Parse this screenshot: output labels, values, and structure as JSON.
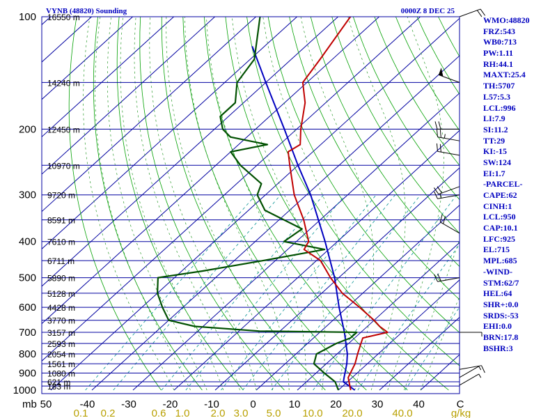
{
  "title": "VYNB (48820) Sounding",
  "time": "0000Z  8 DEC 25",
  "colors": {
    "frame": "#0000a0",
    "isobar": "#0000a0",
    "isotherm": "#0000a0",
    "dry_adiabat": "#00a000",
    "moist_adiabat": "#2a9a2a",
    "mixing_ratio": "#009090",
    "temperature": "#c00000",
    "dewpoint": "#005000",
    "parcel": "#0000c0",
    "axis_text": "#000000",
    "mixing_text": "#b8a000",
    "sidebar_text": "#0000c0"
  },
  "chart_data": {
    "type": "skew-t",
    "p_axis": {
      "label": "mb",
      "top": 100,
      "bottom": 1000,
      "ticks": [
        100,
        200,
        300,
        400,
        500,
        600,
        700,
        800,
        900,
        1000
      ]
    },
    "t_axis": {
      "ticks": [
        "50",
        "-40",
        "-30",
        "-20",
        "-10",
        "0",
        "10",
        "20",
        "30",
        "40",
        "C"
      ]
    },
    "mixing_ratio_labels": [
      "0.1",
      "0.2",
      "0.6",
      "1.0",
      "2.0",
      "3.0",
      "5.0",
      "10.0",
      "20.0",
      "40.0",
      "g/kg"
    ],
    "heights": [
      {
        "p": 100,
        "label": "16550 m"
      },
      {
        "p": 150,
        "label": "14240 m"
      },
      {
        "p": 200,
        "label": "12450 m"
      },
      {
        "p": 250,
        "label": "10970 m"
      },
      {
        "p": 300,
        "label": "9720 m"
      },
      {
        "p": 350,
        "label": "8591 m"
      },
      {
        "p": 400,
        "label": "7610 m"
      },
      {
        "p": 450,
        "label": "6711 m"
      },
      {
        "p": 500,
        "label": "5890 m"
      },
      {
        "p": 550,
        "label": "5128 m"
      },
      {
        "p": 600,
        "label": "4428 m"
      },
      {
        "p": 650,
        "label": "3770 m"
      },
      {
        "p": 700,
        "label": "3157 m"
      },
      {
        "p": 750,
        "label": "2593 m"
      },
      {
        "p": 800,
        "label": "2054 m"
      },
      {
        "p": 850,
        "label": "1561 m"
      },
      {
        "p": 900,
        "label": "1080 m"
      },
      {
        "p": 950,
        "label": "621 m"
      },
      {
        "p": 975,
        "label": "183 m"
      }
    ],
    "temperature": [
      {
        "p": 1000,
        "t": 23
      },
      {
        "p": 925,
        "t": 19
      },
      {
        "p": 850,
        "t": 17
      },
      {
        "p": 800,
        "t": 15
      },
      {
        "p": 750,
        "t": 13
      },
      {
        "p": 725,
        "t": 12
      },
      {
        "p": 700,
        "t": 16.5
      },
      {
        "p": 675,
        "t": 13
      },
      {
        "p": 650,
        "t": 10
      },
      {
        "p": 600,
        "t": 3
      },
      {
        "p": 550,
        "t": -5
      },
      {
        "p": 500,
        "t": -12
      },
      {
        "p": 450,
        "t": -19
      },
      {
        "p": 420,
        "t": -26
      },
      {
        "p": 400,
        "t": -27
      },
      {
        "p": 350,
        "t": -34
      },
      {
        "p": 300,
        "t": -43
      },
      {
        "p": 250,
        "t": -52
      },
      {
        "p": 230,
        "t": -56
      },
      {
        "p": 220,
        "t": -55
      },
      {
        "p": 200,
        "t": -59
      },
      {
        "p": 170,
        "t": -65
      },
      {
        "p": 150,
        "t": -71
      },
      {
        "p": 130,
        "t": -73
      },
      {
        "p": 100,
        "t": -77
      }
    ],
    "dewpoint": [
      {
        "p": 1000,
        "t": 20
      },
      {
        "p": 950,
        "t": 17
      },
      {
        "p": 900,
        "t": 12
      },
      {
        "p": 850,
        "t": 7
      },
      {
        "p": 800,
        "t": 5
      },
      {
        "p": 750,
        "t": 7
      },
      {
        "p": 725,
        "t": 9
      },
      {
        "p": 700,
        "t": 9
      },
      {
        "p": 695,
        "t": -15
      },
      {
        "p": 675,
        "t": -32
      },
      {
        "p": 650,
        "t": -40
      },
      {
        "p": 600,
        "t": -45
      },
      {
        "p": 550,
        "t": -50
      },
      {
        "p": 500,
        "t": -54
      },
      {
        "p": 480,
        "t": -45
      },
      {
        "p": 450,
        "t": -33
      },
      {
        "p": 420,
        "t": -21
      },
      {
        "p": 400,
        "t": -33
      },
      {
        "p": 370,
        "t": -32
      },
      {
        "p": 330,
        "t": -46
      },
      {
        "p": 300,
        "t": -52
      },
      {
        "p": 280,
        "t": -54
      },
      {
        "p": 250,
        "t": -64
      },
      {
        "p": 230,
        "t": -70
      },
      {
        "p": 220,
        "t": -63
      },
      {
        "p": 210,
        "t": -74
      },
      {
        "p": 200,
        "t": -78
      },
      {
        "p": 185,
        "t": -82
      },
      {
        "p": 170,
        "t": -82
      },
      {
        "p": 150,
        "t": -87
      },
      {
        "p": 130,
        "t": -89
      },
      {
        "p": 100,
        "t": -99
      }
    ],
    "parcel": [
      {
        "p": 1000,
        "t": 24
      },
      {
        "p": 950,
        "t": 19
      },
      {
        "p": 925,
        "t": 18
      },
      {
        "p": 850,
        "t": 15
      },
      {
        "p": 800,
        "t": 12.5
      },
      {
        "p": 700,
        "t": 6
      },
      {
        "p": 600,
        "t": -2
      },
      {
        "p": 500,
        "t": -11
      },
      {
        "p": 400,
        "t": -23
      },
      {
        "p": 300,
        "t": -39
      },
      {
        "p": 250,
        "t": -50
      },
      {
        "p": 200,
        "t": -63
      },
      {
        "p": 150,
        "t": -80
      },
      {
        "p": 120,
        "t": -93
      }
    ],
    "wind_barbs": [
      {
        "p": 100,
        "dir": 70,
        "spd": 20
      },
      {
        "p": 150,
        "dir": 290,
        "spd": 50
      },
      {
        "p": 200,
        "dir": 270,
        "spd": 20
      },
      {
        "p": 215,
        "dir": 280,
        "spd": 25
      },
      {
        "p": 235,
        "dir": 280,
        "spd": 20
      },
      {
        "p": 285,
        "dir": 250,
        "spd": 20
      },
      {
        "p": 300,
        "dir": 260,
        "spd": 15
      },
      {
        "p": 380,
        "dir": 300,
        "spd": 20
      },
      {
        "p": 500,
        "dir": 260,
        "spd": 20
      },
      {
        "p": 700,
        "dir": 90,
        "spd": 5
      },
      {
        "p": 880,
        "dir": 80,
        "spd": 10
      },
      {
        "p": 925,
        "dir": 60,
        "spd": 5
      },
      {
        "p": 970,
        "dir": 60,
        "spd": 5
      }
    ],
    "grid": true
  },
  "sidebar": [
    "WMO:48820",
    "FRZ:543",
    "WB0:713",
    "PW:1.11",
    "RH:44.1",
    "MAXT:25.4",
    "TH:5707",
    "L57:5.3",
    "LCL:996",
    "LI:7.9",
    "SI:11.2",
    "TT:29",
    "KI:-15",
    "SW:124",
    "EI:1.7",
    "-PARCEL-",
    "CAPE:62",
    "CINH:1",
    "LCL:950",
    "CAP:10.1",
    "LFC:925",
    "EL:715",
    "MPL:685",
    "-WIND-",
    "STM:62/7",
    "HEL:64",
    "SHR+:0.0",
    "SRDS:-53",
    "EHI:0.0",
    "BRN:17.8",
    "BSHR:3"
  ]
}
